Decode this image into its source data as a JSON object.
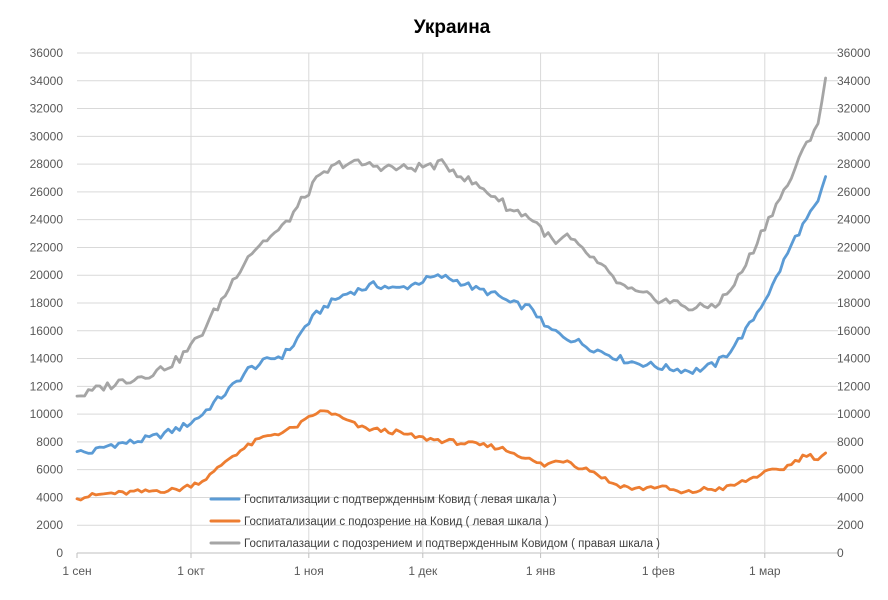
{
  "chart_data": {
    "type": "line",
    "title": "Украина",
    "xlabel": "",
    "ylabel": "",
    "ylim": [
      0,
      36000
    ],
    "y2lim": [
      0,
      36000
    ],
    "yticks": [
      0,
      2000,
      4000,
      6000,
      8000,
      10000,
      12000,
      14000,
      16000,
      18000,
      20000,
      22000,
      24000,
      26000,
      28000,
      30000,
      32000,
      34000,
      36000
    ],
    "y2ticks": [
      0,
      2000,
      4000,
      6000,
      8000,
      10000,
      12000,
      14000,
      16000,
      18000,
      20000,
      22000,
      24000,
      26000,
      28000,
      30000,
      32000,
      34000,
      36000
    ],
    "x_unit": "days since 1 сен",
    "xlim": [
      0,
      189
    ],
    "xticks": [
      {
        "day": 0,
        "label": "1 сен"
      },
      {
        "day": 30,
        "label": "1 окт"
      },
      {
        "day": 61,
        "label": "1 ноя"
      },
      {
        "day": 91,
        "label": "1 дек"
      },
      {
        "day": 122,
        "label": "1 янв"
      },
      {
        "day": 153,
        "label": "1 фев"
      },
      {
        "day": 181,
        "label": "1 мар"
      }
    ],
    "grid": true,
    "legend_position": "lower-center",
    "series": [
      {
        "name": "Госпитализации с подтвержденным Ковид ( левая шкала )",
        "axis": "left",
        "color": "#5b9bd5",
        "points": [
          [
            0,
            7300
          ],
          [
            3,
            7200
          ],
          [
            6,
            7500
          ],
          [
            9,
            7800
          ],
          [
            12,
            7900
          ],
          [
            15,
            8000
          ],
          [
            18,
            8200
          ],
          [
            21,
            8400
          ],
          [
            24,
            8700
          ],
          [
            27,
            9000
          ],
          [
            30,
            9400
          ],
          [
            33,
            10000
          ],
          [
            36,
            10800
          ],
          [
            39,
            11500
          ],
          [
            42,
            12300
          ],
          [
            45,
            13200
          ],
          [
            48,
            13600
          ],
          [
            51,
            14000
          ],
          [
            54,
            14200
          ],
          [
            57,
            15000
          ],
          [
            60,
            16300
          ],
          [
            63,
            17200
          ],
          [
            66,
            17900
          ],
          [
            69,
            18400
          ],
          [
            72,
            18800
          ],
          [
            75,
            19000
          ],
          [
            78,
            19300
          ],
          [
            81,
            19200
          ],
          [
            84,
            19000
          ],
          [
            87,
            19200
          ],
          [
            90,
            19500
          ],
          [
            93,
            19800
          ],
          [
            96,
            19900
          ],
          [
            99,
            19700
          ],
          [
            102,
            19400
          ],
          [
            105,
            19000
          ],
          [
            108,
            18800
          ],
          [
            111,
            18500
          ],
          [
            114,
            18000
          ],
          [
            117,
            17800
          ],
          [
            120,
            17600
          ],
          [
            123,
            16300
          ],
          [
            126,
            15900
          ],
          [
            129,
            15500
          ],
          [
            132,
            15200
          ],
          [
            135,
            14800
          ],
          [
            138,
            14500
          ],
          [
            141,
            14200
          ],
          [
            144,
            13900
          ],
          [
            147,
            13700
          ],
          [
            150,
            13600
          ],
          [
            153,
            13400
          ],
          [
            156,
            13300
          ],
          [
            159,
            13200
          ],
          [
            162,
            13100
          ],
          [
            165,
            13300
          ],
          [
            168,
            13600
          ],
          [
            171,
            14300
          ],
          [
            174,
            15300
          ],
          [
            177,
            16400
          ],
          [
            180,
            17800
          ],
          [
            183,
            19200
          ],
          [
            186,
            21000
          ],
          [
            189,
            22700
          ],
          [
            192,
            24000
          ],
          [
            195,
            25200
          ],
          [
            197,
            27100
          ]
        ]
      },
      {
        "name": "Госпиатализации с подозрение на Ковид ( левая шкала )",
        "axis": "left",
        "color": "#ed7d31",
        "points": [
          [
            0,
            3900
          ],
          [
            3,
            4100
          ],
          [
            6,
            4200
          ],
          [
            9,
            4300
          ],
          [
            12,
            4300
          ],
          [
            15,
            4400
          ],
          [
            18,
            4400
          ],
          [
            21,
            4500
          ],
          [
            24,
            4500
          ],
          [
            27,
            4600
          ],
          [
            30,
            4900
          ],
          [
            33,
            5200
          ],
          [
            36,
            5800
          ],
          [
            39,
            6600
          ],
          [
            42,
            7200
          ],
          [
            45,
            7700
          ],
          [
            48,
            8200
          ],
          [
            51,
            8500
          ],
          [
            54,
            8700
          ],
          [
            57,
            9000
          ],
          [
            60,
            9500
          ],
          [
            63,
            10100
          ],
          [
            66,
            10200
          ],
          [
            69,
            9800
          ],
          [
            72,
            9400
          ],
          [
            75,
            9000
          ],
          [
            78,
            8900
          ],
          [
            81,
            8800
          ],
          [
            84,
            8700
          ],
          [
            87,
            8500
          ],
          [
            90,
            8300
          ],
          [
            93,
            8200
          ],
          [
            96,
            8100
          ],
          [
            99,
            8000
          ],
          [
            102,
            7900
          ],
          [
            105,
            7800
          ],
          [
            108,
            7700
          ],
          [
            111,
            7600
          ],
          [
            114,
            7300
          ],
          [
            117,
            7000
          ],
          [
            120,
            6600
          ],
          [
            123,
            6300
          ],
          [
            126,
            6600
          ],
          [
            129,
            6700
          ],
          [
            132,
            6200
          ],
          [
            135,
            6000
          ],
          [
            138,
            5500
          ],
          [
            141,
            5000
          ],
          [
            144,
            4800
          ],
          [
            147,
            4600
          ],
          [
            150,
            4700
          ],
          [
            153,
            4800
          ],
          [
            156,
            4600
          ],
          [
            159,
            4300
          ],
          [
            162,
            4400
          ],
          [
            165,
            4600
          ],
          [
            168,
            4600
          ],
          [
            171,
            4700
          ],
          [
            174,
            5000
          ],
          [
            177,
            5300
          ],
          [
            180,
            5700
          ],
          [
            183,
            5900
          ],
          [
            186,
            6100
          ],
          [
            189,
            6600
          ],
          [
            192,
            7100
          ],
          [
            195,
            6800
          ],
          [
            197,
            7200
          ]
        ]
      },
      {
        "name": "Госпиталазации с подозрением и подтвержденным Ковидом ( правая шкала )",
        "axis": "right",
        "color": "#a5a5a5",
        "points": [
          [
            0,
            11300
          ],
          [
            3,
            11500
          ],
          [
            6,
            11900
          ],
          [
            9,
            12100
          ],
          [
            12,
            12400
          ],
          [
            15,
            12600
          ],
          [
            18,
            12800
          ],
          [
            21,
            13100
          ],
          [
            24,
            13500
          ],
          [
            27,
            14000
          ],
          [
            30,
            14900
          ],
          [
            33,
            15900
          ],
          [
            36,
            17300
          ],
          [
            39,
            18600
          ],
          [
            42,
            20100
          ],
          [
            45,
            21400
          ],
          [
            48,
            22200
          ],
          [
            51,
            22800
          ],
          [
            54,
            23400
          ],
          [
            57,
            24500
          ],
          [
            60,
            25700
          ],
          [
            63,
            26800
          ],
          [
            66,
            27500
          ],
          [
            69,
            28000
          ],
          [
            72,
            28100
          ],
          [
            75,
            28000
          ],
          [
            78,
            27900
          ],
          [
            81,
            27800
          ],
          [
            84,
            27700
          ],
          [
            87,
            27700
          ],
          [
            90,
            27800
          ],
          [
            93,
            27900
          ],
          [
            96,
            28000
          ],
          [
            99,
            27600
          ],
          [
            102,
            27000
          ],
          [
            105,
            26500
          ],
          [
            108,
            26000
          ],
          [
            111,
            25500
          ],
          [
            114,
            24700
          ],
          [
            117,
            24500
          ],
          [
            120,
            24000
          ],
          [
            123,
            23100
          ],
          [
            126,
            22200
          ],
          [
            129,
            22800
          ],
          [
            132,
            22000
          ],
          [
            135,
            21400
          ],
          [
            138,
            20600
          ],
          [
            141,
            19800
          ],
          [
            144,
            19100
          ],
          [
            147,
            18700
          ],
          [
            150,
            18500
          ],
          [
            153,
            18300
          ],
          [
            156,
            18100
          ],
          [
            159,
            17900
          ],
          [
            162,
            17600
          ],
          [
            165,
            17700
          ],
          [
            168,
            17900
          ],
          [
            171,
            18600
          ],
          [
            174,
            19800
          ],
          [
            177,
            21300
          ],
          [
            180,
            23000
          ],
          [
            183,
            24600
          ],
          [
            186,
            26000
          ],
          [
            189,
            27600
          ],
          [
            192,
            29500
          ],
          [
            195,
            31000
          ],
          [
            197,
            34200
          ]
        ]
      }
    ]
  }
}
